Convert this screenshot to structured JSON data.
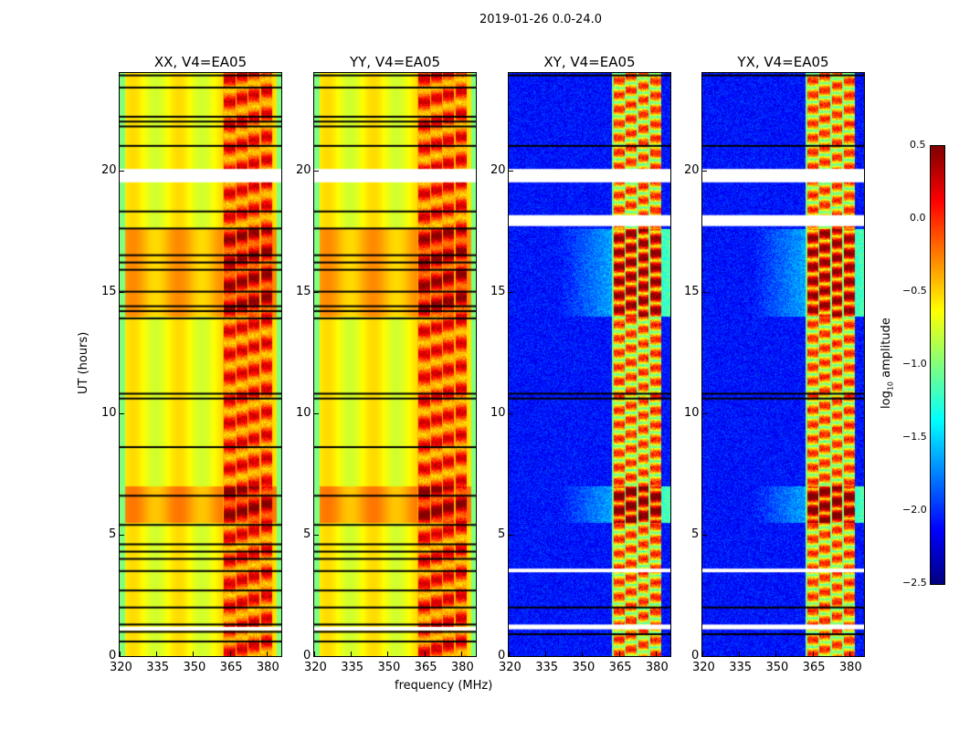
{
  "chart_data": {
    "type": "heatmap",
    "title": "2019-01-26 0.0-24.0",
    "xlabel": "frequency (MHz)",
    "ylabel": "UT (hours)",
    "xlim": [
      320,
      386
    ],
    "ylim": [
      0,
      24
    ],
    "xticks": [
      "320",
      "335",
      "350",
      "365",
      "380"
    ],
    "xtick_values": [
      320,
      335,
      350,
      365,
      380
    ],
    "yticks": [
      "0",
      "5",
      "10",
      "15",
      "20"
    ],
    "ytick_values": [
      0,
      5,
      10,
      15,
      20
    ],
    "panels": [
      {
        "title": "XX, V4=EA05",
        "kind": "parallel",
        "white_gaps": [
          [
            19.5,
            20.05
          ],
          [
            1.05,
            1.2
          ]
        ],
        "black_lines": [
          23.9,
          23.4,
          22.2,
          22.0,
          21.8,
          21.0,
          18.3,
          17.6,
          16.5,
          16.2,
          15.9,
          15.0,
          14.4,
          14.2,
          13.9,
          10.8,
          10.6,
          8.6,
          6.6,
          5.4,
          4.6,
          4.3,
          4.0,
          3.5,
          2.7,
          2.0,
          1.3,
          1.0,
          0.6
        ]
      },
      {
        "title": "YY, V4=EA05",
        "kind": "parallel",
        "white_gaps": [
          [
            19.5,
            20.05
          ],
          [
            1.05,
            1.2
          ]
        ],
        "black_lines": [
          23.9,
          23.4,
          22.2,
          22.0,
          21.8,
          21.0,
          18.3,
          17.6,
          16.5,
          16.2,
          15.9,
          15.0,
          14.4,
          14.2,
          13.9,
          10.8,
          10.6,
          8.6,
          6.6,
          5.4,
          4.6,
          4.3,
          4.0,
          3.5,
          2.7,
          2.0,
          1.3,
          1.0,
          0.6
        ]
      },
      {
        "title": "XY, V4=EA05",
        "kind": "cross",
        "white_gaps": [
          [
            19.5,
            20.05
          ],
          [
            17.7,
            18.15
          ],
          [
            3.45,
            3.6
          ],
          [
            1.1,
            1.3
          ]
        ],
        "black_lines": [
          23.9,
          21.0,
          10.8,
          10.6,
          2.0,
          0.9
        ]
      },
      {
        "title": "YX, V4=EA05",
        "kind": "cross",
        "white_gaps": [
          [
            19.5,
            20.05
          ],
          [
            17.7,
            18.15
          ],
          [
            3.45,
            3.6
          ],
          [
            1.1,
            1.3
          ]
        ],
        "black_lines": [
          23.9,
          21.0,
          10.8,
          10.6,
          2.0,
          0.9
        ]
      }
    ],
    "bright_band_mhz": [
      362,
      382
    ],
    "colorbar": {
      "label": "log10 amplitude",
      "label_main": "log",
      "label_sub": "10",
      "label_rest": " amplitude",
      "range": [
        -2.5,
        0.5
      ],
      "ticks": [
        "0.5",
        "0.0",
        "−0.5",
        "−1.0",
        "−1.5",
        "−2.0",
        "−2.5"
      ],
      "tick_values": [
        0.5,
        0,
        -0.5,
        -1,
        -1.5,
        -2,
        -2.5
      ],
      "colormap": "jet"
    }
  }
}
